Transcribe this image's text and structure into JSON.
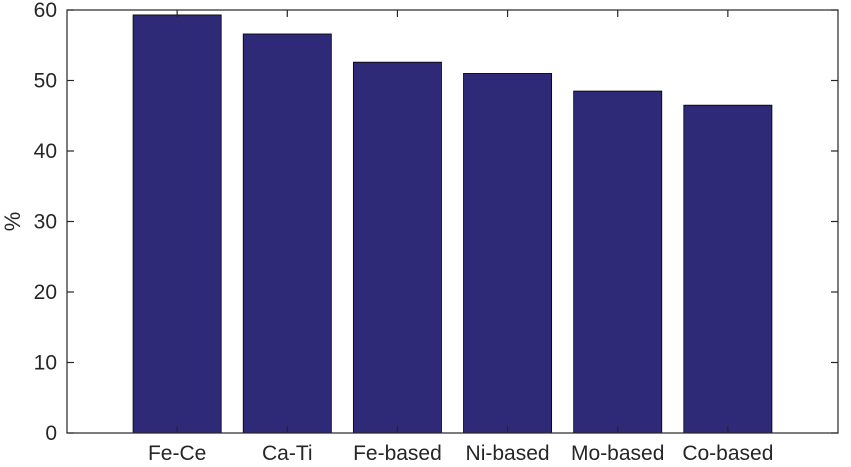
{
  "chart_data": {
    "type": "bar",
    "title": "",
    "xlabel": "",
    "ylabel": "%",
    "ylim": [
      0,
      60
    ],
    "yticks": [
      0,
      10,
      20,
      30,
      40,
      50,
      60
    ],
    "grid": false,
    "categories": [
      "Fe-Ce",
      "Ca-Ti",
      "Fe-based",
      "Ni-based",
      "Mo-based",
      "Co-based"
    ],
    "values": [
      59.3,
      56.6,
      52.6,
      51.0,
      48.5,
      46.5
    ],
    "bar_color": "#2e2a77",
    "axis_color": "#262626"
  }
}
